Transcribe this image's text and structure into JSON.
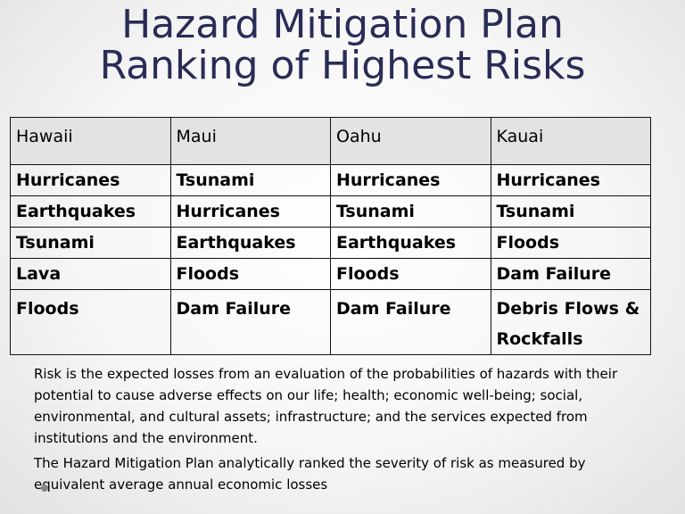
{
  "title": {
    "line1": "Hazard Mitigation Plan",
    "line2": "Ranking of Highest Risks"
  },
  "table": {
    "headers": [
      "Hawaii",
      "Maui",
      "Oahu",
      "Kauai"
    ],
    "rows": [
      [
        "Hurricanes",
        "Tsunami",
        "Hurricanes",
        "Hurricanes"
      ],
      [
        "Earthquakes",
        "Hurricanes",
        "Tsunami",
        "Tsunami"
      ],
      [
        "Tsunami",
        "Earthquakes",
        "Earthquakes",
        "Floods"
      ],
      [
        "Lava",
        "Floods",
        "Floods",
        "Dam Failure"
      ],
      [
        "Floods",
        "Dam Failure",
        "Dam Failure",
        "Debris Flows & Rockfalls"
      ]
    ]
  },
  "description": {
    "paragraph1": "Risk is the expected losses from an evaluation of the probabilities of hazards with their potential to cause adverse effects on our life; health; economic well-being; social, environmental, and cultural assets; infrastructure; and the services expected from institutions and the environment.",
    "paragraph2": "The Hazard Mitigation Plan analytically ranked the severity of risk as measured by equivalent average annual economic losses"
  }
}
